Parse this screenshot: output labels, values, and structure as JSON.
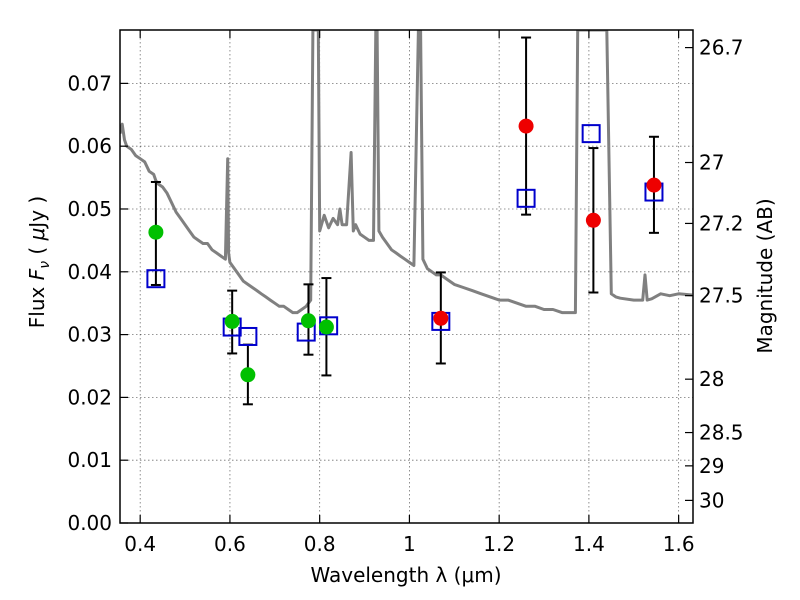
{
  "chart_data": {
    "type": "scatter",
    "xlabel": "Wavelength  λ (μm)",
    "ylabel": "Flux  F_ν  ( μJy )",
    "y2label": "Magnitude (AB)",
    "xlim": [
      0.355,
      1.632
    ],
    "ylim": [
      0.0,
      0.0785
    ],
    "x_ticks": [
      0.4,
      0.6,
      0.8,
      1.0,
      1.2,
      1.4,
      1.6
    ],
    "x_tick_labels": [
      "0.4",
      "0.6",
      "0.8",
      "1",
      "1.2",
      "1.4",
      "1.6"
    ],
    "y_ticks": [
      0.0,
      0.01,
      0.02,
      0.03,
      0.04,
      0.05,
      0.06,
      0.07
    ],
    "y_tick_labels": [
      "0.00",
      "0.01",
      "0.02",
      "0.03",
      "0.04",
      "0.05",
      "0.06",
      "0.07"
    ],
    "y2_ticks": [
      {
        "label": "26.7",
        "flux": 0.0757
      },
      {
        "label": "27",
        "flux": 0.0574
      },
      {
        "label": "27.2",
        "flux": 0.0477
      },
      {
        "label": "27.5",
        "flux": 0.0362
      },
      {
        "label": "28",
        "flux": 0.0229
      },
      {
        "label": "28.5",
        "flux": 0.0144
      },
      {
        "label": "29",
        "flux": 0.0091
      },
      {
        "label": "30",
        "flux": 0.0036
      }
    ],
    "grid": true,
    "colors": {
      "model": "#808080",
      "green": "#00c000",
      "red": "#ee0000",
      "blue": "#0000cc",
      "errorbar": "#000000"
    },
    "model_spectrum": {
      "x": [
        0.355,
        0.36,
        0.365,
        0.37,
        0.38,
        0.39,
        0.4,
        0.41,
        0.42,
        0.43,
        0.435,
        0.44,
        0.45,
        0.46,
        0.47,
        0.48,
        0.49,
        0.5,
        0.51,
        0.52,
        0.53,
        0.54,
        0.55,
        0.56,
        0.57,
        0.58,
        0.59,
        0.595,
        0.597,
        0.6,
        0.61,
        0.62,
        0.63,
        0.64,
        0.65,
        0.66,
        0.67,
        0.68,
        0.69,
        0.7,
        0.71,
        0.72,
        0.73,
        0.74,
        0.75,
        0.76,
        0.77,
        0.78,
        0.785,
        0.79,
        0.793,
        0.797,
        0.8,
        0.81,
        0.82,
        0.83,
        0.84,
        0.845,
        0.85,
        0.86,
        0.87,
        0.875,
        0.88,
        0.89,
        0.9,
        0.91,
        0.92,
        0.925,
        0.928,
        0.932,
        0.94,
        0.95,
        0.96,
        0.97,
        0.98,
        0.99,
        1.0,
        1.01,
        1.02,
        1.025,
        1.03,
        1.04,
        1.05,
        1.06,
        1.07,
        1.08,
        1.1,
        1.12,
        1.14,
        1.16,
        1.18,
        1.2,
        1.22,
        1.24,
        1.26,
        1.28,
        1.3,
        1.32,
        1.34,
        1.36,
        1.37,
        1.375,
        1.38,
        1.39,
        1.4,
        1.42,
        1.44,
        1.45,
        1.46,
        1.47,
        1.5,
        1.52,
        1.525,
        1.53,
        1.54,
        1.56,
        1.58,
        1.6,
        1.63
      ],
      "y": [
        0.062,
        0.0635,
        0.061,
        0.06,
        0.0595,
        0.0585,
        0.058,
        0.0575,
        0.056,
        0.0555,
        0.0545,
        0.054,
        0.0535,
        0.0525,
        0.051,
        0.0495,
        0.0485,
        0.0475,
        0.0465,
        0.0455,
        0.045,
        0.0445,
        0.0445,
        0.0435,
        0.043,
        0.0425,
        0.042,
        0.058,
        0.043,
        0.0415,
        0.0405,
        0.0395,
        0.0385,
        0.038,
        0.0375,
        0.037,
        0.0365,
        0.036,
        0.0355,
        0.035,
        0.0345,
        0.0345,
        0.034,
        0.0335,
        0.0335,
        0.034,
        0.0345,
        0.0355,
        0.0785,
        0.0785,
        0.0785,
        0.0785,
        0.0465,
        0.049,
        0.047,
        0.0485,
        0.0475,
        0.05,
        0.0475,
        0.0475,
        0.059,
        0.0465,
        0.0475,
        0.046,
        0.0455,
        0.045,
        0.045,
        0.0785,
        0.0785,
        0.0465,
        0.0455,
        0.0445,
        0.0435,
        0.043,
        0.0425,
        0.042,
        0.0415,
        0.041,
        0.0785,
        0.0785,
        0.042,
        0.0405,
        0.04,
        0.0395,
        0.0395,
        0.039,
        0.038,
        0.0375,
        0.037,
        0.0365,
        0.036,
        0.0355,
        0.0355,
        0.035,
        0.0345,
        0.0345,
        0.034,
        0.034,
        0.0335,
        0.0335,
        0.0335,
        0.0785,
        0.0785,
        0.0785,
        0.0785,
        0.0785,
        0.0785,
        0.0365,
        0.036,
        0.0358,
        0.0355,
        0.0355,
        0.0395,
        0.0355,
        0.0357,
        0.0365,
        0.0362,
        0.0365,
        0.0363
      ]
    },
    "photometry_green": [
      {
        "x": 0.435,
        "y": 0.0463,
        "yerr": [
          0.0379,
          0.0543
        ]
      },
      {
        "x": 0.605,
        "y": 0.0321,
        "yerr": [
          0.027,
          0.037
        ]
      },
      {
        "x": 0.64,
        "y": 0.0236,
        "yerr": [
          0.0189,
          0.0284
        ]
      },
      {
        "x": 0.775,
        "y": 0.0322,
        "yerr": [
          0.0268,
          0.038
        ]
      },
      {
        "x": 0.815,
        "y": 0.0312,
        "yerr": [
          0.0235,
          0.039
        ]
      }
    ],
    "photometry_red": [
      {
        "x": 1.07,
        "y": 0.0326,
        "yerr": [
          0.0254,
          0.0399
        ]
      },
      {
        "x": 1.26,
        "y": 0.0632,
        "yerr": [
          0.0491,
          0.0773
        ]
      },
      {
        "x": 1.41,
        "y": 0.0482,
        "yerr": [
          0.0367,
          0.0597
        ]
      },
      {
        "x": 1.545,
        "y": 0.0538,
        "yerr": [
          0.0462,
          0.0615
        ]
      }
    ],
    "model_fluxes_blue": [
      {
        "x": 0.435,
        "y": 0.0389
      },
      {
        "x": 0.605,
        "y": 0.0312
      },
      {
        "x": 0.64,
        "y": 0.0297
      },
      {
        "x": 0.77,
        "y": 0.0304
      },
      {
        "x": 0.82,
        "y": 0.0314
      },
      {
        "x": 1.07,
        "y": 0.0321
      },
      {
        "x": 1.26,
        "y": 0.0517
      },
      {
        "x": 1.405,
        "y": 0.062
      },
      {
        "x": 1.545,
        "y": 0.0527
      }
    ]
  }
}
